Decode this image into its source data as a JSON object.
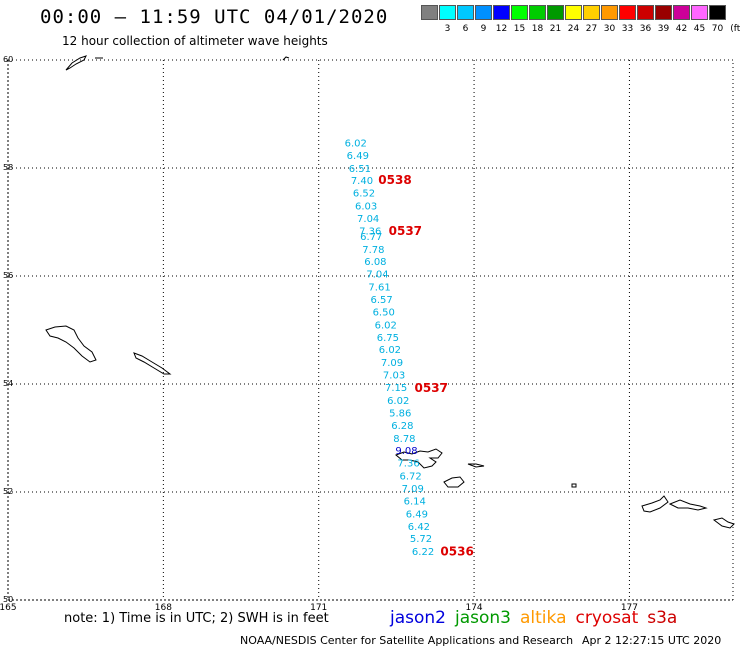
{
  "header": {
    "title": "00:00 – 11:59 UTC 04/01/2020",
    "subtitle": "12 hour collection of altimeter wave heights"
  },
  "legend": {
    "unit": "(ft)",
    "items": [
      {
        "label": "",
        "color": "#808080"
      },
      {
        "label": "3",
        "color": "#00ffff"
      },
      {
        "label": "6",
        "color": "#00c8ff"
      },
      {
        "label": "9",
        "color": "#0090ff"
      },
      {
        "label": "12",
        "color": "#0000ff"
      },
      {
        "label": "15",
        "color": "#00ff00"
      },
      {
        "label": "18",
        "color": "#00cc00"
      },
      {
        "label": "21",
        "color": "#009900"
      },
      {
        "label": "24",
        "color": "#ffff00"
      },
      {
        "label": "27",
        "color": "#ffd000"
      },
      {
        "label": "30",
        "color": "#ff9900"
      },
      {
        "label": "33",
        "color": "#ff0000"
      },
      {
        "label": "36",
        "color": "#cc0000"
      },
      {
        "label": "39",
        "color": "#990000"
      },
      {
        "label": "42",
        "color": "#cc0099"
      },
      {
        "label": "45",
        "color": "#ff66ff"
      },
      {
        "label": "70",
        "color": "#000000"
      }
    ]
  },
  "map": {
    "lon_range": [
      165,
      179
    ],
    "lat_range": [
      50,
      60
    ],
    "lat_grid": [
      {
        "lat": 60,
        "label": "60"
      },
      {
        "lat": 58,
        "label": "58"
      },
      {
        "lat": 56,
        "label": "56"
      },
      {
        "lat": 54,
        "label": "54"
      },
      {
        "lat": 52,
        "label": "52"
      },
      {
        "lat": 50,
        "label": "50"
      }
    ],
    "lon_grid": [
      {
        "lon": 165,
        "label": "165"
      },
      {
        "lon": 168,
        "label": "168"
      },
      {
        "lon": 171,
        "label": "171"
      },
      {
        "lon": 174,
        "label": "174"
      },
      {
        "lon": 177,
        "label": "177"
      }
    ],
    "wave_readings": [
      {
        "lat": 58.4,
        "lon": 171.5,
        "value": "6.02"
      },
      {
        "lat": 58.17,
        "lon": 171.54,
        "value": "6.49"
      },
      {
        "lat": 57.93,
        "lon": 171.58,
        "value": "6.51"
      },
      {
        "lat": 57.7,
        "lon": 171.62,
        "value": "7.40"
      },
      {
        "lat": 57.47,
        "lon": 171.66,
        "value": "6.52"
      },
      {
        "lat": 57.23,
        "lon": 171.7,
        "value": "6.03"
      },
      {
        "lat": 57.0,
        "lon": 171.74,
        "value": "7.04"
      },
      {
        "lat": 56.77,
        "lon": 171.78,
        "value": "7.36"
      },
      {
        "lat": 56.67,
        "lon": 171.8,
        "value": "6.77"
      },
      {
        "lat": 56.43,
        "lon": 171.84,
        "value": "7.78"
      },
      {
        "lat": 56.2,
        "lon": 171.88,
        "value": "6.08"
      },
      {
        "lat": 55.97,
        "lon": 171.92,
        "value": "7.04"
      },
      {
        "lat": 55.73,
        "lon": 171.96,
        "value": "7.61"
      },
      {
        "lat": 55.5,
        "lon": 172.0,
        "value": "6.57"
      },
      {
        "lat": 55.27,
        "lon": 172.04,
        "value": "6.50"
      },
      {
        "lat": 55.03,
        "lon": 172.08,
        "value": "6.02"
      },
      {
        "lat": 54.8,
        "lon": 172.12,
        "value": "6.75"
      },
      {
        "lat": 54.57,
        "lon": 172.16,
        "value": "6.02"
      },
      {
        "lat": 54.33,
        "lon": 172.2,
        "value": "7.09"
      },
      {
        "lat": 54.1,
        "lon": 172.24,
        "value": "7.03"
      },
      {
        "lat": 53.87,
        "lon": 172.28,
        "value": "7.15"
      },
      {
        "lat": 53.63,
        "lon": 172.32,
        "value": "6.02"
      },
      {
        "lat": 53.4,
        "lon": 172.36,
        "value": "5.86"
      },
      {
        "lat": 53.17,
        "lon": 172.4,
        "value": "6.28"
      },
      {
        "lat": 52.93,
        "lon": 172.44,
        "value": "8.78"
      },
      {
        "lat": 52.7,
        "lon": 172.48,
        "value": "9.08"
      },
      {
        "lat": 52.47,
        "lon": 172.52,
        "value": "7.36"
      },
      {
        "lat": 52.23,
        "lon": 172.56,
        "value": "6.72"
      },
      {
        "lat": 52.0,
        "lon": 172.6,
        "value": "7.09"
      },
      {
        "lat": 51.77,
        "lon": 172.64,
        "value": "6.14"
      },
      {
        "lat": 51.53,
        "lon": 172.68,
        "value": "6.49"
      },
      {
        "lat": 51.3,
        "lon": 172.72,
        "value": "6.42"
      },
      {
        "lat": 51.07,
        "lon": 172.76,
        "value": "5.72"
      },
      {
        "lat": 50.83,
        "lon": 172.8,
        "value": "6.22"
      }
    ],
    "pass_times": [
      {
        "lat": 57.7,
        "lon": 172.15,
        "label": "0538"
      },
      {
        "lat": 56.76,
        "lon": 172.35,
        "label": "0537"
      },
      {
        "lat": 53.85,
        "lon": 172.85,
        "label": "0537"
      },
      {
        "lat": 50.82,
        "lon": 173.35,
        "label": "0536"
      }
    ]
  },
  "footer": {
    "note": "note: 1) Time is in UTC; 2) SWH is in feet",
    "missions": [
      {
        "name": "jason2",
        "color": "#0000dd"
      },
      {
        "name": "jason3",
        "color": "#009900"
      },
      {
        "name": "altika",
        "color": "#ff9900"
      },
      {
        "name": "cryosat",
        "color": "#dd0000"
      },
      {
        "name": "s3a",
        "color": "#cc0000"
      }
    ],
    "credit": "NOAA/NESDIS Center for Satellite Applications and Research",
    "timestamp": "Apr  2 12:27:15 UTC 2020"
  }
}
